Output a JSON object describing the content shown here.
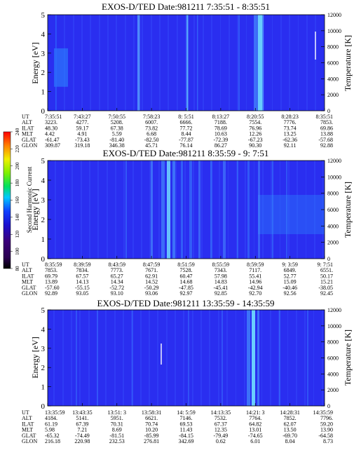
{
  "colorbar": {
    "label": "Second Harmonic Current",
    "ticks": [
      "80",
      "100",
      "120",
      "140",
      "160",
      "180",
      "200",
      "220",
      "240"
    ]
  },
  "chart_data": [
    {
      "type": "heatmap",
      "title": "EXOS-D/TED   Date:981211  7:35:51 - 8:35:51",
      "ylabel": "Energy [eV]",
      "ylabel_right": "Temperature [K]",
      "ylim": [
        0,
        5
      ],
      "y_ticks": [
        "0",
        "1",
        "2",
        "3",
        "4",
        "5"
      ],
      "ylim_right": [
        0,
        12000
      ],
      "y_ticks_right": [
        "0",
        "2000",
        "4000",
        "6000",
        "8000",
        "10000",
        "12000"
      ],
      "table_rows": [
        {
          "name": "UT",
          "values": [
            "7:35:51",
            "7:43:27",
            "7:50:55",
            "7:58:23",
            "8: 5:51",
            "8:13:27",
            "8:20:55",
            "8:28:23",
            "8:35:51"
          ]
        },
        {
          "name": "ALT",
          "values": [
            "3223.",
            "4277.",
            "5208.",
            "6007.",
            "6666.",
            "7188.",
            "7554.",
            "7776.",
            "7853."
          ]
        },
        {
          "name": "ILAT",
          "values": [
            "48.30",
            "59.17",
            "67.38",
            "73.82",
            "77.72",
            "78.69",
            "76.96",
            "73.74",
            "69.86"
          ]
        },
        {
          "name": "MLT",
          "values": [
            "4.42",
            "4.91",
            "5.59",
            "6.68",
            "8.44",
            "10.63",
            "12.26",
            "13.25",
            "13.88"
          ]
        },
        {
          "name": "GLAT",
          "values": [
            "-61.47",
            "-73.43",
            "-81.40",
            "-82.50",
            "-77.87",
            "-72.39",
            "-67.23",
            "-62.36",
            "-57.68"
          ]
        },
        {
          "name": "GLON",
          "values": [
            "309.87",
            "319.18",
            "346.38",
            "45.71",
            "76.14",
            "86.27",
            "90.30",
            "92.11",
            "92.88"
          ]
        }
      ]
    },
    {
      "type": "heatmap",
      "title": "EXOS-D/TED   Date:981211  8:35:59 - 9: 7:51",
      "ylabel": "Energy [eV]",
      "ylabel_right": "Temperature [K]",
      "ylim": [
        0,
        5
      ],
      "y_ticks": [
        "0",
        "1",
        "2",
        "3",
        "4",
        "5"
      ],
      "ylim_right": [
        0,
        12000
      ],
      "y_ticks_right": [
        "0",
        "2000",
        "4000",
        "6000",
        "8000",
        "10000",
        "12000"
      ],
      "table_rows": [
        {
          "name": "UT",
          "values": [
            "8:35:59",
            "8:39:59",
            "8:43:59",
            "8:47:59",
            "8:51:59",
            "8:55:59",
            "8:59:59",
            "9: 3:59",
            "9: 7:51"
          ]
        },
        {
          "name": "ALT",
          "values": [
            "7853.",
            "7834.",
            "7773.",
            "7671.",
            "7528.",
            "7343.",
            "7117.",
            "6849.",
            "6551."
          ]
        },
        {
          "name": "ILAT",
          "values": [
            "69.79",
            "67.57",
            "65.27",
            "62.91",
            "60.47",
            "57.98",
            "55.41",
            "52.77",
            "50.17"
          ]
        },
        {
          "name": "MLT",
          "values": [
            "13.89",
            "14.13",
            "14.34",
            "14.52",
            "14.68",
            "14.83",
            "14.96",
            "15.09",
            "15.21"
          ]
        },
        {
          "name": "GLAT",
          "values": [
            "-57.60",
            "-55.15",
            "-52.72",
            "-50.29",
            "-47.85",
            "-45.41",
            "-42.94",
            "-40.46",
            "-38.05"
          ]
        },
        {
          "name": "GLON",
          "values": [
            "92.89",
            "93.05",
            "93.10",
            "93.06",
            "92.97",
            "92.85",
            "92.70",
            "92.56",
            "92.45"
          ]
        }
      ]
    },
    {
      "type": "heatmap",
      "title": "EXOS-D/TED   Date:981211  13:35:59 - 14:35:59",
      "ylabel": "Energy [eV]",
      "ylabel_right": "Temperature [K]",
      "ylim": [
        0,
        5
      ],
      "y_ticks": [
        "0",
        "1",
        "2",
        "3",
        "4",
        "5"
      ],
      "ylim_right": [
        0,
        12000
      ],
      "y_ticks_right": [
        "0",
        "2000",
        "4000",
        "6000",
        "8000",
        "10000",
        "12000"
      ],
      "table_rows": [
        {
          "name": "UT",
          "values": [
            "13:35:59",
            "13:43:35",
            "13:51: 3",
            "13:58:31",
            "14: 5:59",
            "14:13:35",
            "14:21: 3",
            "14:28:31",
            "14:35:59"
          ]
        },
        {
          "name": "ALT",
          "values": [
            "4184.",
            "5141.",
            "5951.",
            "6621.",
            "7146.",
            "7532.",
            "7764.",
            "7852.",
            "7796."
          ]
        },
        {
          "name": "ILAT",
          "values": [
            "61.19",
            "67.39",
            "70.31",
            "70.74",
            "69.53",
            "67.37",
            "64.82",
            "62.07",
            "59.20"
          ]
        },
        {
          "name": "MLT",
          "values": [
            "5.98",
            "7.21",
            "8.69",
            "10.20",
            "11.43",
            "12.35",
            "13.01",
            "13.50",
            "13.90"
          ]
        },
        {
          "name": "GLAT",
          "values": [
            "-65.32",
            "-74.49",
            "-81.51",
            "-85.99",
            "-84.15",
            "-79.49",
            "-74.65",
            "-69.70",
            "-64.58"
          ]
        },
        {
          "name": "GLON",
          "values": [
            "216.18",
            "220.98",
            "232.53",
            "276.81",
            "342.69",
            "0.62",
            "6.01",
            "8.04",
            "8.73"
          ]
        }
      ]
    }
  ]
}
